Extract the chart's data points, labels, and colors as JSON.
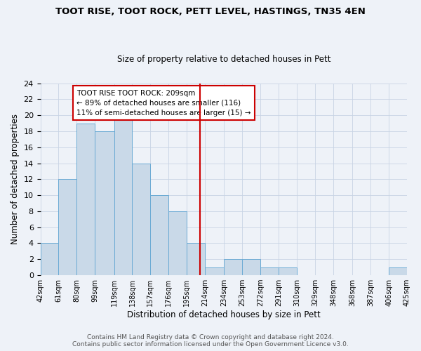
{
  "title": "TOOT RISE, TOOT ROCK, PETT LEVEL, HASTINGS, TN35 4EN",
  "subtitle": "Size of property relative to detached houses in Pett",
  "xlabel": "Distribution of detached houses by size in Pett",
  "ylabel": "Number of detached properties",
  "bar_color": "#c9d9e8",
  "bar_edge_color": "#6aaad4",
  "grid_color": "#c8d4e4",
  "background_color": "#eef2f8",
  "vline_x": 209,
  "vline_color": "#cc0000",
  "bin_edges": [
    42,
    61,
    80,
    99,
    119,
    138,
    157,
    176,
    195,
    214,
    234,
    253,
    272,
    291,
    310,
    329,
    348,
    368,
    387,
    406,
    425
  ],
  "bin_heights": [
    4,
    12,
    19,
    18,
    20,
    14,
    10,
    8,
    4,
    1,
    2,
    2,
    1,
    1,
    0,
    0,
    0,
    0,
    0,
    1
  ],
  "annotation_text": "TOOT RISE TOOT ROCK: 209sqm\n← 89% of detached houses are smaller (116)\n11% of semi-detached houses are larger (15) →",
  "annotation_box_color": "#cc0000",
  "ylim": [
    0,
    24
  ],
  "yticks": [
    0,
    2,
    4,
    6,
    8,
    10,
    12,
    14,
    16,
    18,
    20,
    22,
    24
  ],
  "footer_text": "Contains HM Land Registry data © Crown copyright and database right 2024.\nContains public sector information licensed under the Open Government Licence v3.0.",
  "tick_labels": [
    "42sqm",
    "61sqm",
    "80sqm",
    "99sqm",
    "119sqm",
    "138sqm",
    "157sqm",
    "176sqm",
    "195sqm",
    "214sqm",
    "234sqm",
    "253sqm",
    "272sqm",
    "291sqm",
    "310sqm",
    "329sqm",
    "348sqm",
    "368sqm",
    "387sqm",
    "406sqm",
    "425sqm"
  ]
}
